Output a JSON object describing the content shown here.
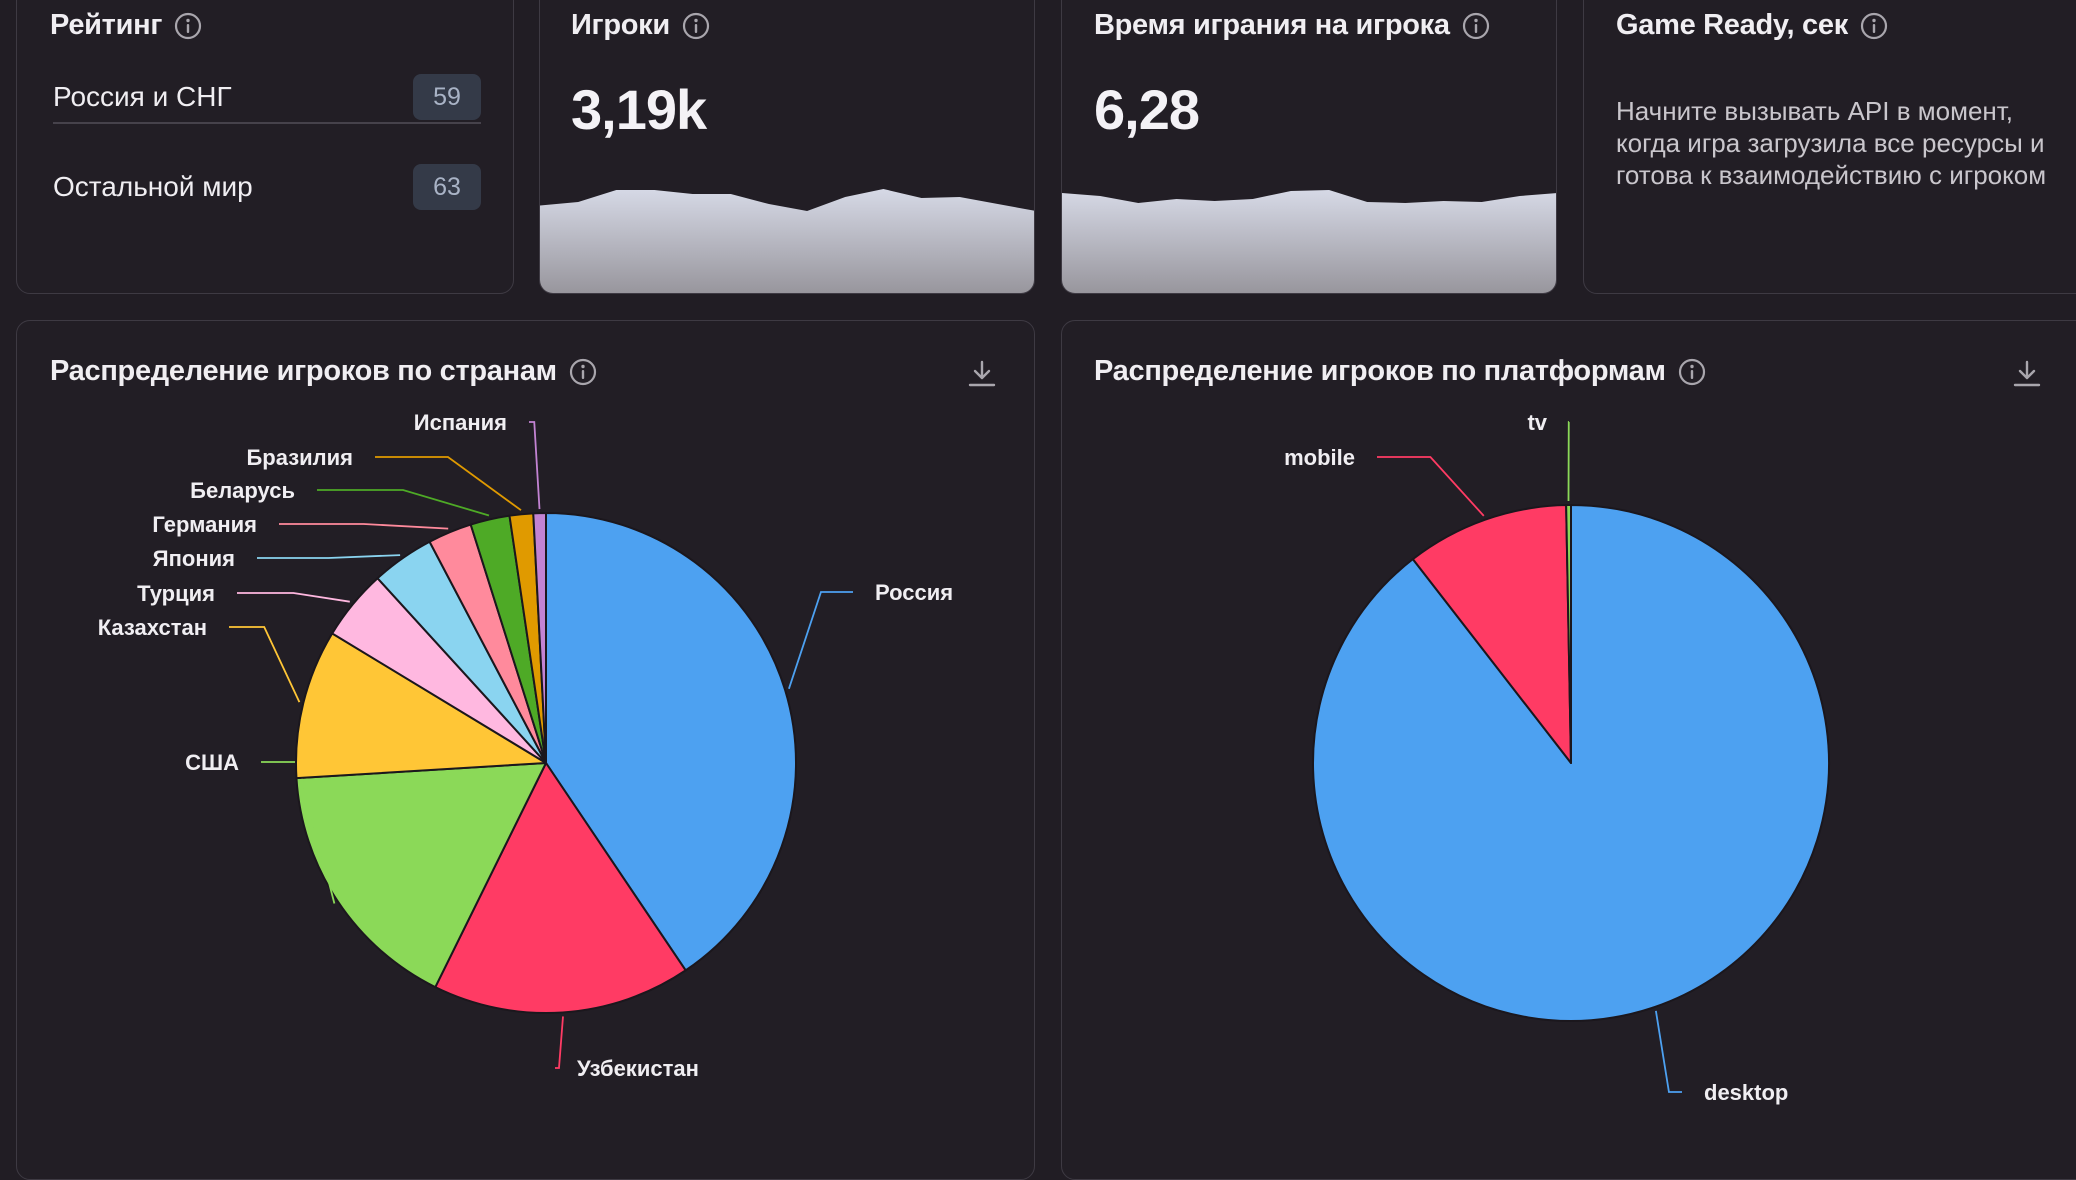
{
  "rating": {
    "title": "Рейтинг",
    "rows": [
      {
        "label": "Россия и СНГ",
        "value": "59"
      },
      {
        "label": "Остальной мир",
        "value": "63"
      }
    ]
  },
  "players": {
    "title": "Игроки",
    "value": "3,19k",
    "trend": [
      0.55,
      0.62,
      0.86,
      0.86,
      0.78,
      0.78,
      0.58,
      0.44,
      0.72,
      0.88,
      0.7,
      0.72,
      0.58,
      0.44
    ]
  },
  "playtime": {
    "title": "Время играния на игрока",
    "value": "6,28",
    "trend": [
      0.8,
      0.74,
      0.6,
      0.68,
      0.64,
      0.68,
      0.84,
      0.86,
      0.62,
      0.6,
      0.64,
      0.62,
      0.74,
      0.8
    ]
  },
  "game_ready": {
    "title": "Game Ready, сек",
    "hint": "Начните вызывать API в момент, когда игра загрузила все ресурсы и готова к взаимодействию с игроком"
  },
  "countries_chart": {
    "title": "Распределение игроков по странам"
  },
  "platforms_chart": {
    "title": "Распределение игроков по платформам"
  },
  "chart_data": [
    {
      "type": "pie",
      "title": "Распределение игроков по странам",
      "slices": [
        {
          "label": "Россия",
          "value": 40.0,
          "color": "#4da1f1"
        },
        {
          "label": "Узбекистан",
          "value": 16.5,
          "color": "#ff3b64"
        },
        {
          "label": "США",
          "value": 16.5,
          "color": "#8bd958"
        },
        {
          "label": "Казахстан",
          "value": 9.5,
          "color": "#ffc636"
        },
        {
          "label": "Турция",
          "value": 4.5,
          "color": "#ffb8e0"
        },
        {
          "label": "Япония",
          "value": 4.0,
          "color": "#8ad4f0"
        },
        {
          "label": "Германия",
          "value": 2.8,
          "color": "#ff8a9c"
        },
        {
          "label": "Беларусь",
          "value": 2.5,
          "color": "#4eaa26"
        },
        {
          "label": "Бразилия",
          "value": 1.5,
          "color": "#e09a00"
        },
        {
          "label": "Испания",
          "value": 0.8,
          "color": "#c383d3"
        }
      ]
    },
    {
      "type": "pie",
      "title": "Распределение игроков по платформам",
      "slices": [
        {
          "label": "desktop",
          "value": 89.5,
          "color": "#4da1f1"
        },
        {
          "label": "mobile",
          "value": 10.2,
          "color": "#ff3b64"
        },
        {
          "label": "tv",
          "value": 0.3,
          "color": "#8bd958"
        }
      ]
    }
  ]
}
